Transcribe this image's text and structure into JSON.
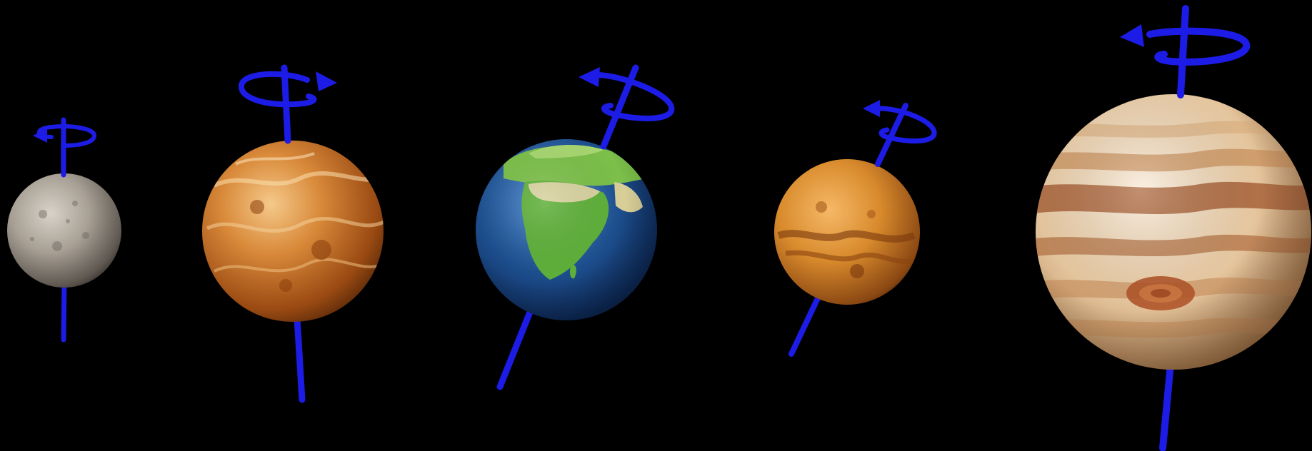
{
  "background": "#000000",
  "axis_color": "#1c1ce6",
  "planets": [
    {
      "name": "mercury",
      "base_color": "#9c958c"
    },
    {
      "name": "venus",
      "base_color": "#c66a1f"
    },
    {
      "name": "earth",
      "base_color": "#1d4f8f"
    },
    {
      "name": "mars",
      "base_color": "#d88a2c"
    },
    {
      "name": "jupiter",
      "base_color": "#e7c8a0"
    }
  ]
}
